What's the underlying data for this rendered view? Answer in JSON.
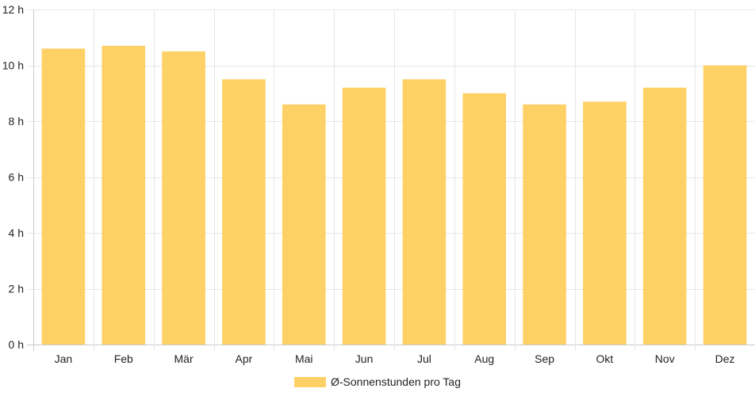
{
  "chart_data": {
    "type": "bar",
    "categories": [
      "Jan",
      "Feb",
      "Mär",
      "Apr",
      "Mai",
      "Jun",
      "Jul",
      "Aug",
      "Sep",
      "Okt",
      "Nov",
      "Dez"
    ],
    "series": [
      {
        "name": "Ø-Sonnenstunden pro Tag",
        "values": [
          10.6,
          10.7,
          10.5,
          9.5,
          8.6,
          9.2,
          9.5,
          9.0,
          8.6,
          8.7,
          9.2,
          10.0
        ],
        "color": "#fed166"
      }
    ],
    "ylim": [
      0,
      12
    ],
    "yticks": [
      0,
      2,
      4,
      6,
      8,
      10,
      12
    ],
    "ytick_labels": [
      "0 h",
      "2 h",
      "4 h",
      "6 h",
      "8 h",
      "10 h",
      "12 h"
    ],
    "grid": true,
    "legend_position": "bottom-center"
  }
}
